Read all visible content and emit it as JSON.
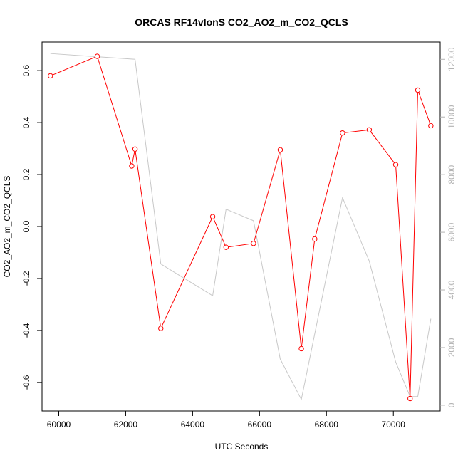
{
  "chart_data": {
    "type": "line",
    "title": "ORCAS RF14vlonS CO2_AO2_m_CO2_QCLS",
    "xlabel": "UTC Seconds",
    "ylabel": "CO2_AO2_m_CO2_QCLS",
    "xlim": [
      59500,
      71400
    ],
    "ylim": [
      -0.71,
      0.71
    ],
    "y2lim": [
      -200,
      12600
    ],
    "x_ticks": [
      60000,
      62000,
      64000,
      66000,
      68000,
      70000
    ],
    "y_ticks": [
      -0.6,
      -0.4,
      -0.2,
      0.0,
      0.2,
      0.4,
      0.6
    ],
    "y_tick_labels": [
      "-0.6",
      "-0.4",
      "-0.2",
      "0.0",
      "0.2",
      "0.4",
      "0.6"
    ],
    "y2_ticks": [
      0,
      2000,
      4000,
      6000,
      8000,
      10000,
      12000
    ],
    "grid": false,
    "series": [
      {
        "role": "primary",
        "color": "#ff0000",
        "marker": "open-circle",
        "x": [
          59750,
          61150,
          62180,
          62280,
          63050,
          64600,
          65000,
          65820,
          66620,
          67250,
          67650,
          68480,
          69280,
          70070,
          70500,
          70730,
          71120
        ],
        "y": [
          0.58,
          0.655,
          0.233,
          0.298,
          -0.392,
          0.038,
          -0.08,
          -0.065,
          0.295,
          -0.47,
          -0.048,
          0.36,
          0.372,
          0.238,
          -0.662,
          0.525,
          0.388
        ]
      },
      {
        "role": "secondary",
        "color": "#c8c8c8",
        "axis": "right",
        "x": [
          59750,
          62280,
          63050,
          64600,
          65000,
          65820,
          66620,
          67250,
          68480,
          69280,
          70070,
          70500,
          70730,
          71120
        ],
        "y": [
          12200,
          12000,
          4900,
          3800,
          6800,
          6400,
          1600,
          200,
          7200,
          5000,
          1500,
          300,
          300,
          3000
        ]
      }
    ]
  }
}
